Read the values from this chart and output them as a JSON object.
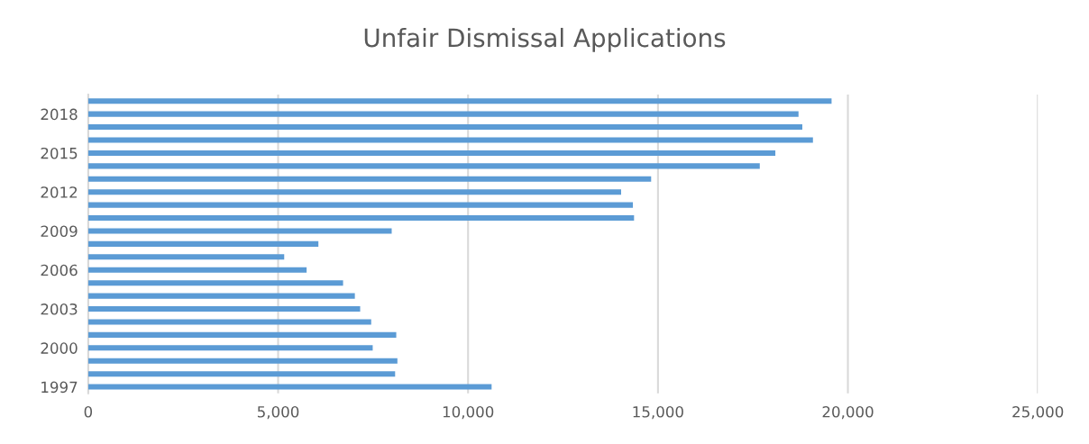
{
  "chart_data": {
    "type": "bar",
    "orientation": "horizontal",
    "title": "Unfair Dismissal Applications",
    "categories": [
      null,
      "2018",
      null,
      null,
      "2015",
      null,
      null,
      "2012",
      null,
      null,
      "2009",
      null,
      null,
      "2006",
      null,
      null,
      "2003",
      null,
      null,
      "2000",
      null,
      null,
      "1997"
    ],
    "values": [
      19570,
      18700,
      18800,
      19080,
      18090,
      17680,
      14820,
      14030,
      14340,
      14370,
      7990,
      6060,
      5160,
      5750,
      6710,
      7020,
      7160,
      7450,
      8110,
      7490,
      8140,
      8080,
      10620
    ],
    "color": "#5b9bd5",
    "xlim": [
      0,
      25000
    ],
    "xticks": [
      0,
      {
        "value": 5000,
        "label": "5,000"
      },
      {
        "value": 10000,
        "label": "10,000"
      },
      {
        "value": 15000,
        "label": "15,000"
      },
      {
        "value": 20000,
        "label": "20,000"
      },
      {
        "value": 25000,
        "label": "25,000"
      }
    ],
    "grid": "x",
    "legend": false
  }
}
